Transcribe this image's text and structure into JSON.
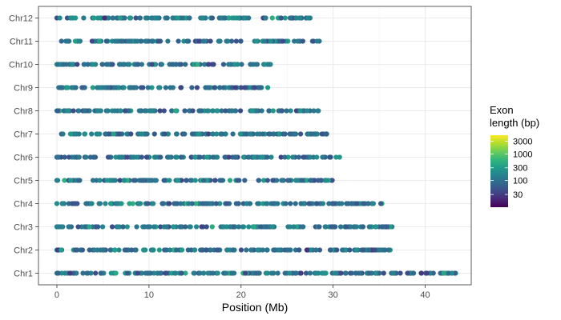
{
  "chart_data": {
    "type": "scatter",
    "title": "",
    "xlabel": "Position (Mb)",
    "ylabel": "",
    "xlim": [
      -2,
      45
    ],
    "x_ticks": [
      0,
      10,
      20,
      30,
      40
    ],
    "categories": [
      "Chr1",
      "Chr2",
      "Chr3",
      "Chr4",
      "Chr5",
      "Chr6",
      "Chr7",
      "Chr8",
      "Chr9",
      "Chr10",
      "Chr11",
      "Chr12"
    ],
    "grid": true,
    "legend": {
      "title": [
        "Exon",
        "length (bp)"
      ],
      "placement": "right",
      "scale": "log10",
      "range": [
        10,
        5000
      ],
      "ticks": [
        30,
        100,
        300,
        1000,
        3000
      ],
      "tick_labels": [
        "30",
        "100",
        "300",
        "1000",
        "3000"
      ],
      "colors": [
        "#440154",
        "#3b528b",
        "#21918c",
        "#5ec962",
        "#fde725"
      ]
    },
    "series": [
      {
        "chromosome": "Chr1",
        "extent_mb": [
          0,
          43.3
        ],
        "note_dense_segments": [
          [
            0,
            30.5
          ],
          [
            31,
            43.3
          ]
        ]
      },
      {
        "chromosome": "Chr2",
        "extent_mb": [
          0,
          36.2
        ]
      },
      {
        "chromosome": "Chr3",
        "extent_mb": [
          0,
          36.4
        ]
      },
      {
        "chromosome": "Chr4",
        "extent_mb": [
          0,
          35.3
        ]
      },
      {
        "chromosome": "Chr5",
        "extent_mb": [
          0,
          29.9
        ]
      },
      {
        "chromosome": "Chr6",
        "extent_mb": [
          0,
          30.7
        ]
      },
      {
        "chromosome": "Chr7",
        "extent_mb": [
          0.5,
          29.3
        ]
      },
      {
        "chromosome": "Chr8",
        "extent_mb": [
          0,
          28.4
        ]
      },
      {
        "chromosome": "Chr9",
        "extent_mb": [
          0.2,
          22.9
        ]
      },
      {
        "chromosome": "Chr10",
        "extent_mb": [
          0,
          23.2
        ]
      },
      {
        "chromosome": "Chr11",
        "extent_mb": [
          0.5,
          28.5
        ]
      },
      {
        "chromosome": "Chr12",
        "extent_mb": [
          0,
          27.5
        ]
      }
    ]
  }
}
